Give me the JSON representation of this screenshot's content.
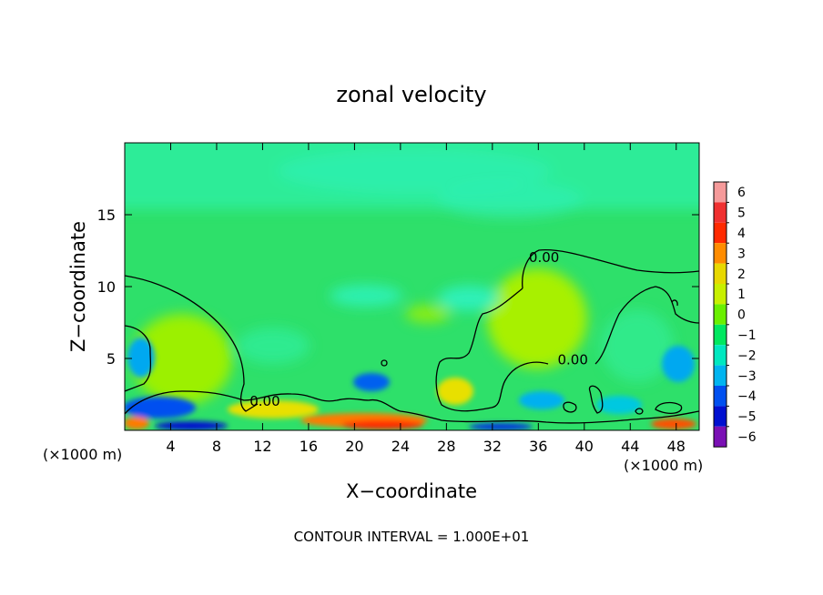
{
  "chart_data": {
    "type": "heatmap",
    "title": "zonal velocity",
    "xlabel": "X−coordinate",
    "ylabel": "Z−coordinate",
    "x_unit_left": "(×1000 m)",
    "x_unit_right": "(×1000 m)",
    "footer": "CONTOUR INTERVAL = 1.000E+01",
    "xlim": [
      0,
      50
    ],
    "ylim": [
      0,
      20
    ],
    "x_ticks": [
      4,
      8,
      12,
      16,
      20,
      24,
      28,
      32,
      36,
      40,
      44,
      48
    ],
    "x_tick_labels": [
      "4",
      "8",
      "12",
      "16",
      "20",
      "24",
      "28",
      "32",
      "36",
      "40",
      "44",
      "48"
    ],
    "y_ticks": [
      5,
      10,
      15
    ],
    "y_tick_labels": [
      "5",
      "10",
      "15"
    ],
    "colorbar": {
      "levels": [
        6,
        5,
        4,
        3,
        2,
        1,
        0,
        -1,
        -2,
        -3,
        -4,
        -5,
        -6
      ],
      "labels": [
        "6",
        "5",
        "4",
        "3",
        "2",
        "1",
        "0",
        "−1",
        "−2",
        "−3",
        "−4",
        "−5",
        "−6"
      ],
      "colors": [
        "#f59a9a",
        "#f03030",
        "#ff2a00",
        "#ff8c00",
        "#e8d800",
        "#c8f000",
        "#6af000",
        "#00e860",
        "#00e8c0",
        "#00b4f0",
        "#0050f0",
        "#0010d0",
        "#7a10b4"
      ]
    },
    "contour_labels": [
      {
        "text": "0.00",
        "x": 36.5,
        "y": 11.7
      },
      {
        "text": "0.00",
        "x": 39.0,
        "y": 4.6
      },
      {
        "text": "0.00",
        "x": 12.2,
        "y": 1.7
      }
    ],
    "background_color": "#2ee06a"
  }
}
